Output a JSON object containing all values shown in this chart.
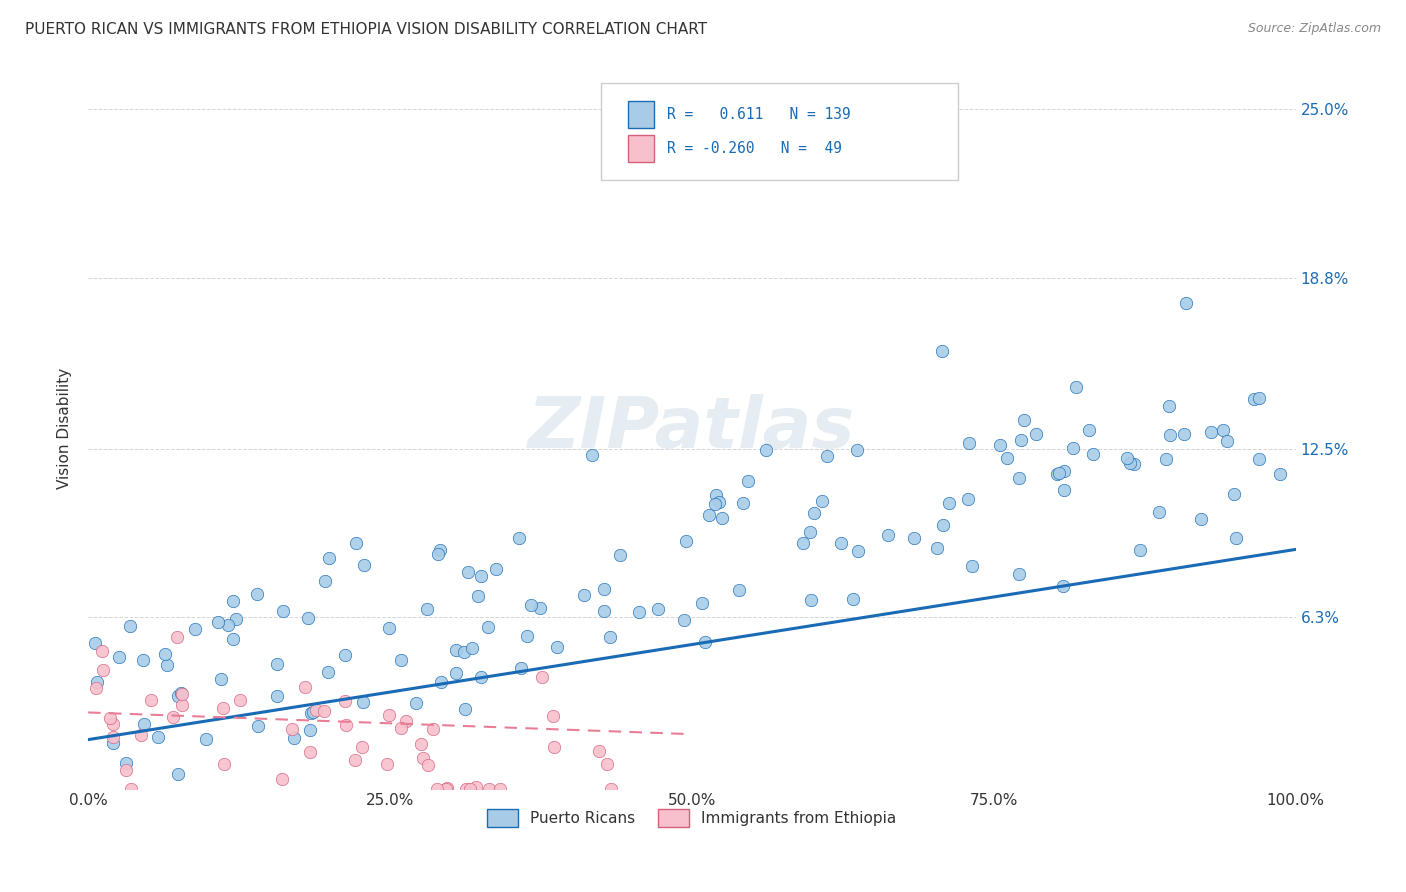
{
  "title": "PUERTO RICAN VS IMMIGRANTS FROM ETHIOPIA VISION DISABILITY CORRELATION CHART",
  "source": "Source: ZipAtlas.com",
  "ylabel": "Vision Disability",
  "yticks": [
    0.0,
    0.063,
    0.125,
    0.188,
    0.25
  ],
  "ytick_labels": [
    "",
    "6.3%",
    "12.5%",
    "18.8%",
    "25.0%"
  ],
  "xlim": [
    0.0,
    1.0
  ],
  "ylim": [
    0.0,
    0.265
  ],
  "watermark": "ZIPatlas",
  "blue_line_color": "#1a6bb5",
  "pink_line_color": "#e87d96",
  "blue_scatter_face": "#a8cce8",
  "blue_scatter_edge": "#1a6bb5",
  "pink_scatter_face": "#f8c0cc",
  "pink_scatter_edge": "#d4607a",
  "background_color": "#ffffff",
  "legend_label_blue": "Puerto Ricans",
  "legend_label_pink": "Immigrants from Ethiopia",
  "blue_R": 0.611,
  "blue_N": 139,
  "pink_R": -0.26,
  "pink_N": 49,
  "blue_intercept": 0.018,
  "blue_slope": 0.07,
  "pink_intercept": 0.028,
  "pink_slope": -0.016,
  "grid_color": "#cccccc",
  "tick_color": "#333333",
  "title_fontsize": 11,
  "source_fontsize": 9,
  "axis_fontsize": 11,
  "legend_fontsize": 10.5,
  "watermark_fontsize": 52,
  "watermark_color": "#d0dde8",
  "right_tick_color": "#1a6bb5"
}
